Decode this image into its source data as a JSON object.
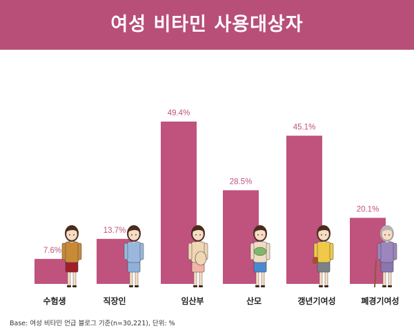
{
  "header": {
    "title": "여성 비타민 사용대상자"
  },
  "footnote": "Base: 여성 비타민 언급 블로그 기준(n=30,221), 단위: %",
  "colors": {
    "accent": "#b84f79",
    "bar": "#c0527e",
    "label": "#c0527e",
    "text": "#222222"
  },
  "chart_data": {
    "type": "bar",
    "title": "여성 비타민 사용대상자",
    "xlabel": "",
    "ylabel": "",
    "ylim": [
      0,
      50
    ],
    "grid": false,
    "categories": [
      "수험생",
      "직장인",
      "임산부",
      "산모",
      "갱년기여성",
      "폐경기여성"
    ],
    "values": [
      7.6,
      13.7,
      49.4,
      28.5,
      45.1,
      20.1
    ],
    "value_labels": [
      "7.6%",
      "13.7%",
      "49.4%",
      "28.5%",
      "45.1%",
      "20.1%"
    ]
  }
}
